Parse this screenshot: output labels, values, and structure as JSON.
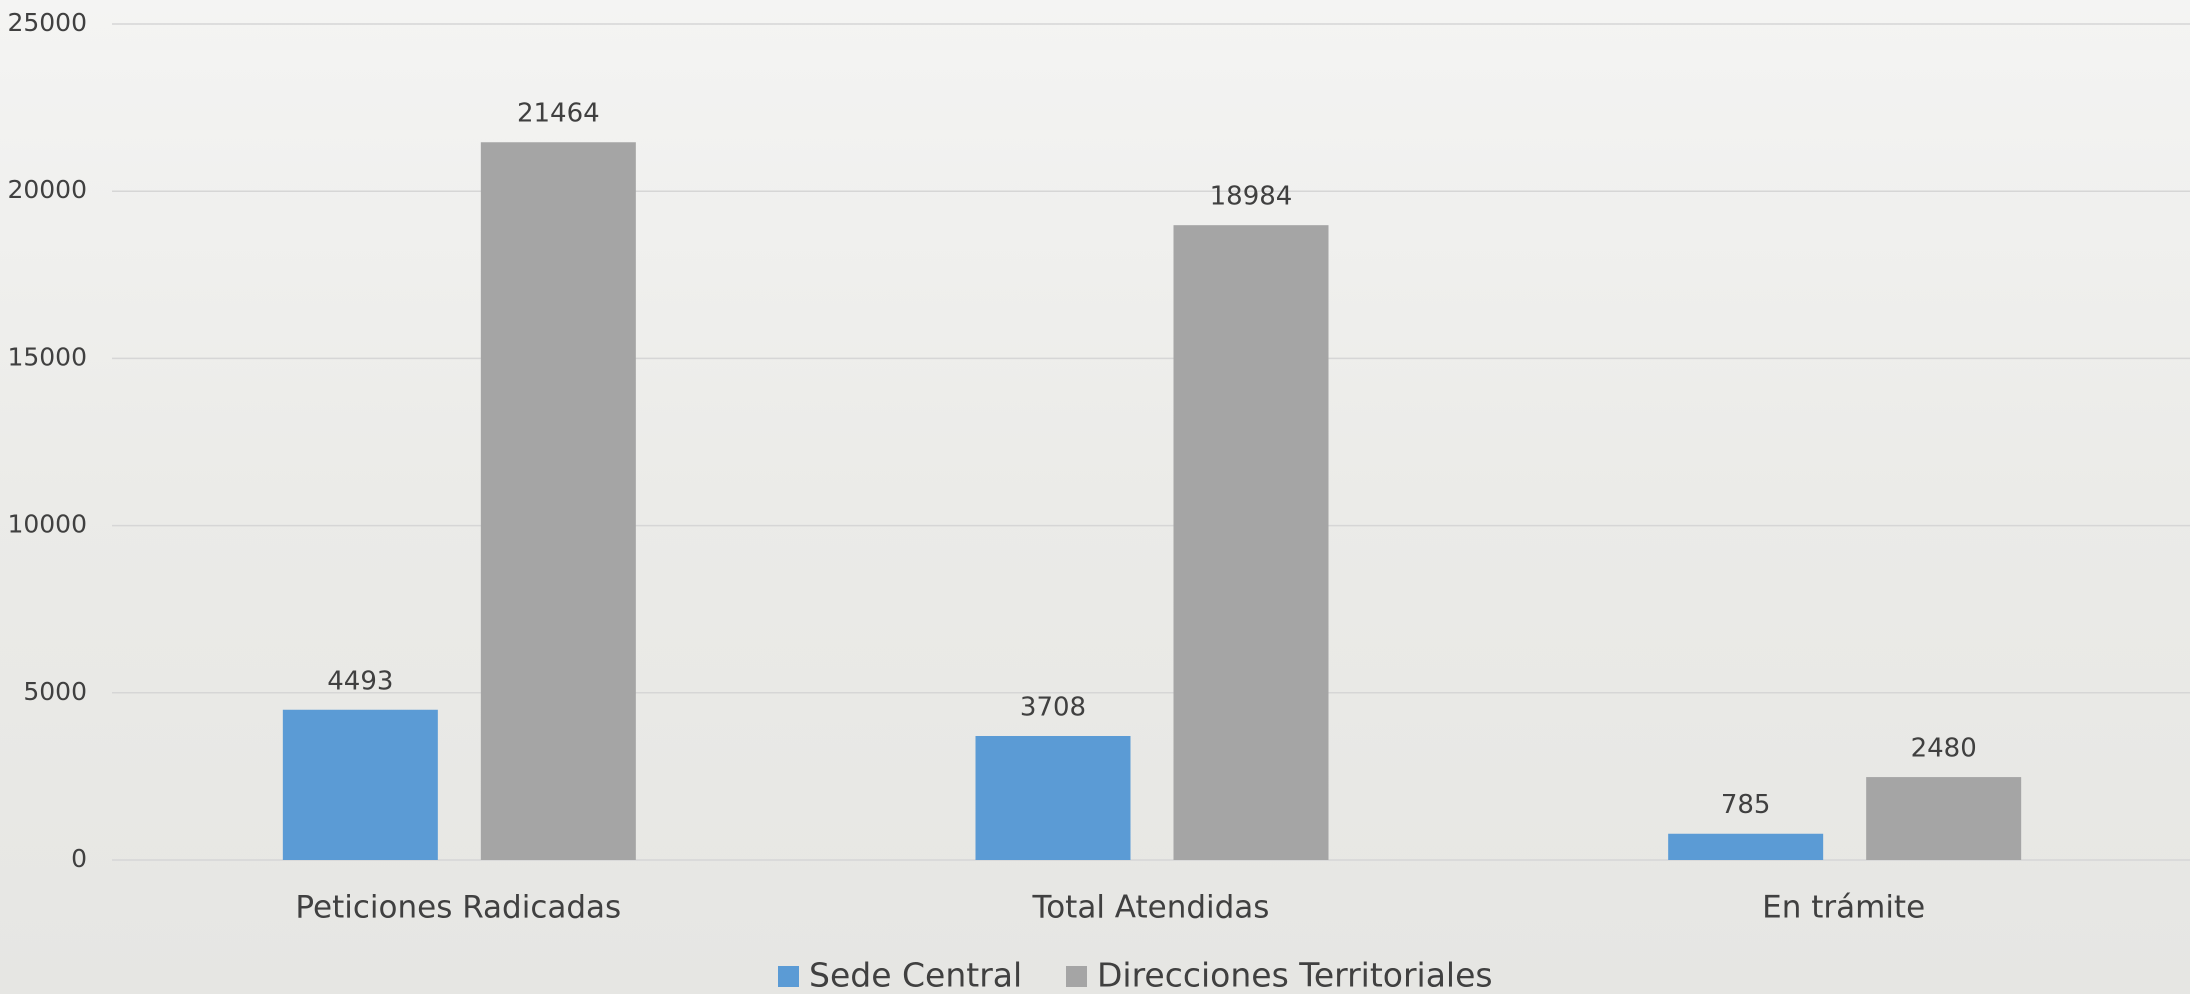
{
  "chart_data": {
    "type": "bar",
    "categories": [
      "Peticiones Radicadas",
      "Total Atendidas",
      "En trámite"
    ],
    "series": [
      {
        "name": "Sede Central",
        "color": "#5b9bd5",
        "values": [
          4493,
          3708,
          785
        ]
      },
      {
        "name": "Direcciones Territoriales",
        "color": "#a5a5a5",
        "values": [
          21464,
          18984,
          2480
        ]
      }
    ],
    "ylim": [
      0,
      25000
    ],
    "yticks": [
      0,
      5000,
      10000,
      15000,
      20000,
      25000
    ],
    "grid": true,
    "legend": "bottom"
  }
}
